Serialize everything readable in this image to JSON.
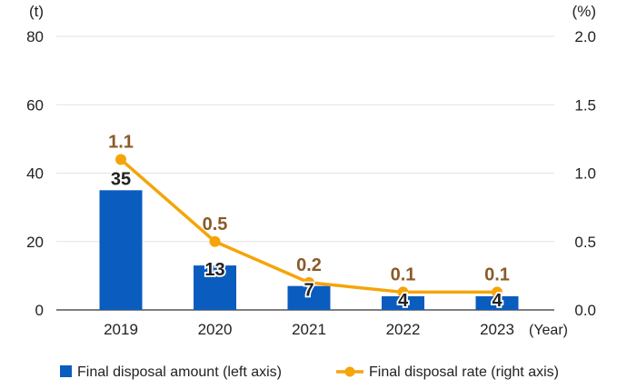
{
  "chart_data": {
    "type": "bar",
    "categories": [
      "2019",
      "2020",
      "2021",
      "2022",
      "2023"
    ],
    "x_unit": "(Year)",
    "series": [
      {
        "name": "Final disposal amount (left axis)",
        "kind": "bar",
        "axis": "left",
        "values": [
          35,
          13,
          7,
          4,
          4
        ],
        "labels": [
          "35",
          "13",
          "7",
          "4",
          "4"
        ],
        "color": "#0a5cbf"
      },
      {
        "name": "Final disposal rate (right axis)",
        "kind": "line",
        "axis": "right",
        "values": [
          1.1,
          0.5,
          0.2,
          0.13,
          0.13
        ],
        "labels": [
          "1.1",
          "0.5",
          "0.2",
          "0.1",
          "0.1"
        ],
        "color": "#f5a40a",
        "label_color": "#8a5a28"
      }
    ],
    "left_axis": {
      "unit": "(t)",
      "ylim": [
        0,
        80
      ],
      "ticks": [
        "0",
        "20",
        "40",
        "60",
        "80"
      ]
    },
    "right_axis": {
      "unit": "(%)",
      "ylim": [
        0,
        2.0
      ],
      "ticks": [
        "0.0",
        "0.5",
        "1.0",
        "1.5",
        "2.0"
      ]
    },
    "grid": true,
    "legend_position": "bottom"
  }
}
